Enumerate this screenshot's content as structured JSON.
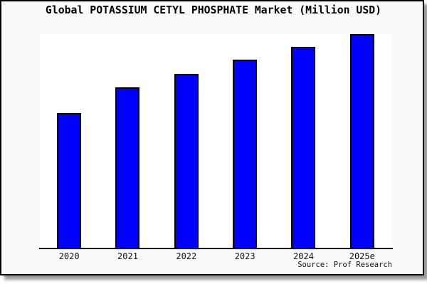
{
  "title": "Global POTASSIUM CETYL PHOSPHATE Market (Million USD)",
  "source_note": "Source: Prof Research",
  "colors": {
    "bar_fill": "#0000fe",
    "bar_border": "#000000",
    "frame_bg": "#fafafa",
    "frame_border": "#000000",
    "plot_bg": "#ffffff"
  },
  "chart_data": {
    "type": "bar",
    "title": "Global POTASSIUM CETYL PHOSPHATE Market (Million USD)",
    "categories": [
      "2020",
      "2021",
      "2022",
      "2023",
      "2024",
      "2025e"
    ],
    "values_pct_of_max": [
      63,
      75,
      81.5,
      88,
      94,
      100
    ],
    "y_axis_labels_visible": false,
    "ylim_note": "no numeric y-axis shown; bar values estimated relative to tallest bar (2025e = 100)",
    "xlabel": "",
    "ylabel": "",
    "legend_position": "none",
    "grid": false,
    "bar_color": "#0000fe",
    "bar_border_color": "#000000",
    "plot_bg": "#ffffff",
    "source_note": "Source: Prof Research"
  }
}
